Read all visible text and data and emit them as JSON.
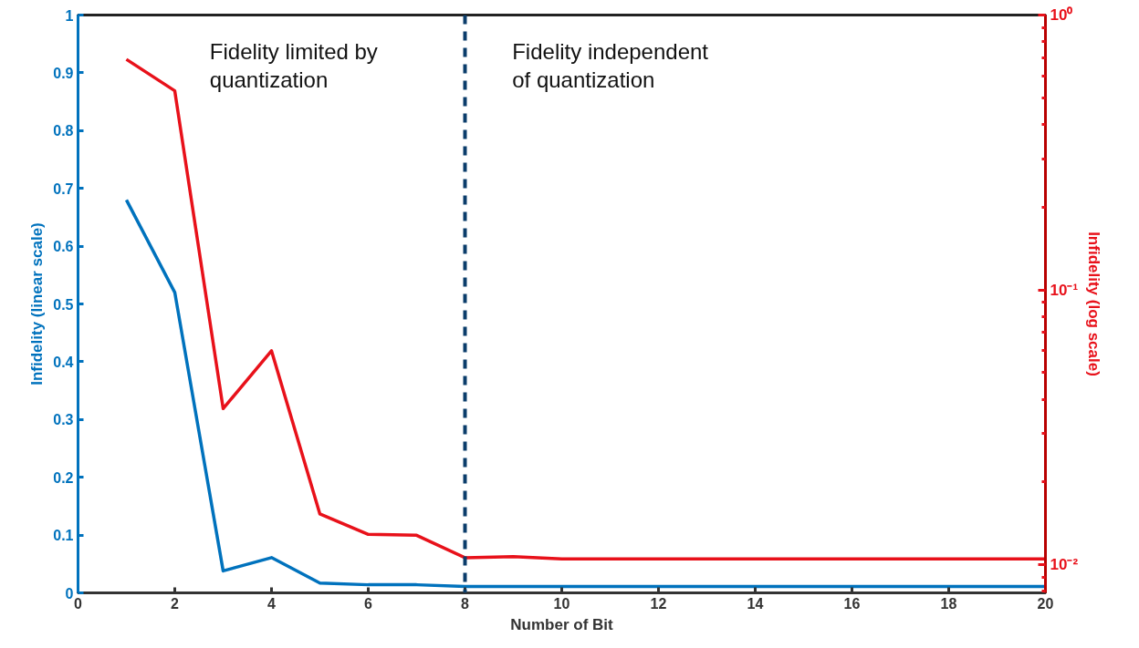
{
  "chart_data": {
    "type": "line",
    "xlabel": "Number of Bit",
    "ylabel": "Infidelity (linear scale)",
    "y2label": "Infidelity (log scale)",
    "x": [
      1,
      2,
      3,
      4,
      5,
      6,
      7,
      8,
      9,
      10,
      11,
      12,
      13,
      14,
      15,
      16,
      17,
      18,
      19,
      20
    ],
    "series": [
      {
        "color": "#0072bd",
        "values": [
          0.68,
          0.52,
          0.038,
          0.061,
          0.017,
          0.014,
          0.014,
          0.011,
          0.011,
          0.011,
          0.011,
          0.011,
          0.011,
          0.011,
          0.011,
          0.011,
          0.011,
          0.011,
          0.011,
          0.011
        ]
      },
      {
        "color": "#e8111a",
        "axis": "y2",
        "values": [
          0.69,
          0.53,
          0.037,
          0.06,
          0.0153,
          0.0129,
          0.0128,
          0.0106,
          0.0107,
          0.0105,
          0.0105,
          0.0105,
          0.0105,
          0.0105,
          0.0105,
          0.0105,
          0.0105,
          0.0105,
          0.0105,
          0.0105
        ]
      }
    ],
    "xlim": [
      0,
      20
    ],
    "xticks": [
      0,
      2,
      4,
      6,
      8,
      10,
      12,
      14,
      16,
      18,
      20
    ],
    "ylim": [
      0,
      1
    ],
    "yticks": [
      0,
      0.1,
      0.2,
      0.3,
      0.4,
      0.5,
      0.6,
      0.7,
      0.8,
      0.9,
      1
    ],
    "y2lim": [
      0.0079,
      1
    ],
    "y2ticks": [
      {
        "value": 0.01,
        "label": "10⁻²"
      },
      {
        "value": 0.1,
        "label": "10⁻¹"
      },
      {
        "value": 1,
        "label": "10⁰"
      }
    ],
    "log": "y2",
    "grid": false,
    "marker": "none",
    "line_style": "solid",
    "ref_lines": [
      {
        "axis": "x",
        "value": 8,
        "color": "#0b3d6b",
        "line_style": "dashed"
      }
    ],
    "annotations": [
      "Fidelity limited by\nquantization",
      "Fidelity independent\nof quantization"
    ]
  }
}
